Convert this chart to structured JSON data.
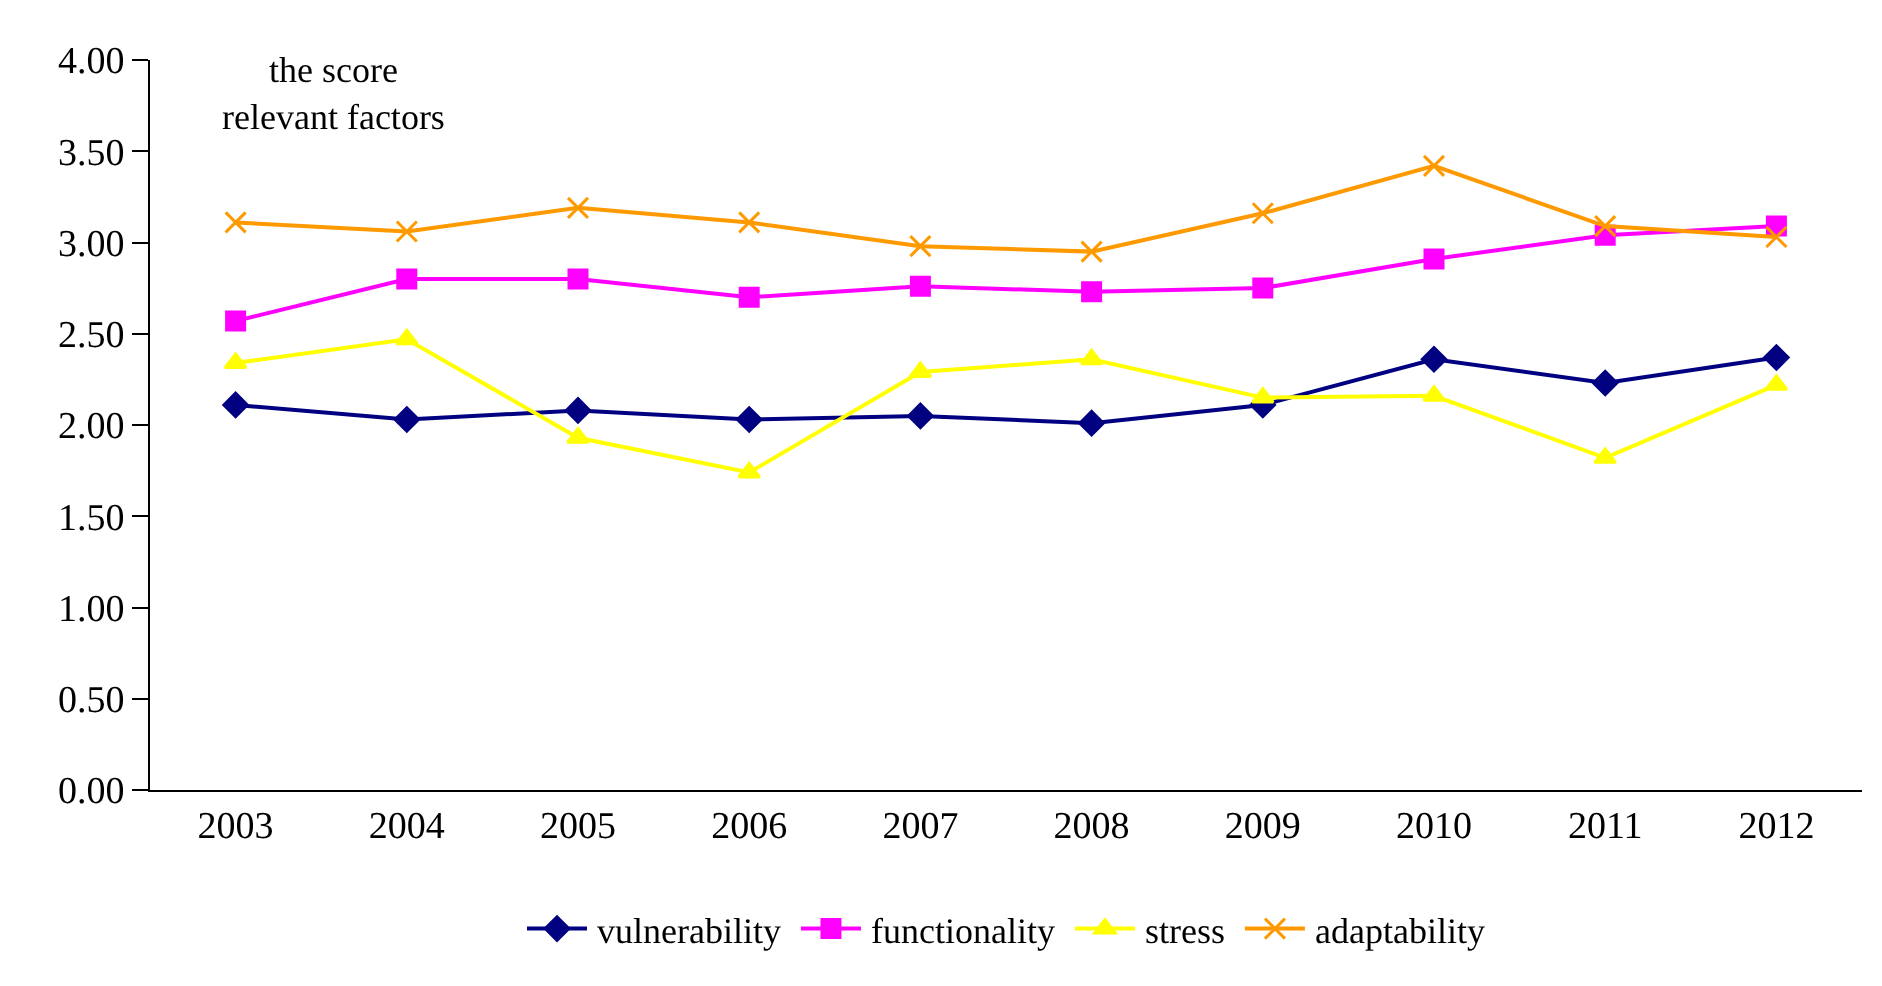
{
  "chart_data": {
    "type": "line",
    "ylabel": "the score\nrelevant factors",
    "categories": [
      "2003",
      "2004",
      "2005",
      "2006",
      "2007",
      "2008",
      "2009",
      "2010",
      "2011",
      "2012"
    ],
    "series": [
      {
        "name": "vulnerability",
        "color": "#000080",
        "marker": "diamond",
        "values": [
          2.11,
          2.03,
          2.08,
          2.03,
          2.05,
          2.01,
          2.11,
          2.36,
          2.23,
          2.37
        ]
      },
      {
        "name": "functionality",
        "color": "#ff00ff",
        "marker": "square",
        "values": [
          2.57,
          2.8,
          2.8,
          2.7,
          2.76,
          2.73,
          2.75,
          2.91,
          3.04,
          3.09
        ]
      },
      {
        "name": "stress",
        "color": "#ffff00",
        "marker": "triangle",
        "values": [
          2.34,
          2.47,
          1.93,
          1.74,
          2.29,
          2.36,
          2.15,
          2.16,
          1.82,
          2.22
        ]
      },
      {
        "name": "adaptability",
        "color": "#ff9900",
        "marker": "cross",
        "values": [
          3.11,
          3.06,
          3.19,
          3.11,
          2.98,
          2.95,
          3.16,
          3.42,
          3.09,
          3.03
        ]
      }
    ],
    "ylim": [
      0,
      4
    ],
    "yticks": [
      {
        "value": 0,
        "label": "0.00"
      },
      {
        "value": 0.5,
        "label": "0.50"
      },
      {
        "value": 1,
        "label": "1.00"
      },
      {
        "value": 1.5,
        "label": "1.50"
      },
      {
        "value": 2,
        "label": "2.00"
      },
      {
        "value": 2.5,
        "label": "2.50"
      },
      {
        "value": 3,
        "label": "3.00"
      },
      {
        "value": 3.5,
        "label": "3.50"
      },
      {
        "value": 4,
        "label": "4.00"
      }
    ],
    "grid": false,
    "legend": "bottom"
  }
}
